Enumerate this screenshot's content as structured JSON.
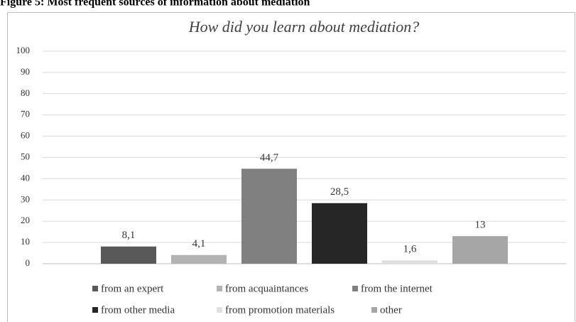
{
  "caption": "Figure 5: Most frequent sources of information about mediation",
  "chart_data": {
    "type": "bar",
    "title": "How did you learn about mediation?",
    "series": [
      {
        "name": "from an expert",
        "color": "#595959",
        "values": [
          8.1
        ],
        "value_labels": [
          "8,1"
        ]
      },
      {
        "name": "from acquaintances",
        "color": "#b3b3b3",
        "values": [
          4.1
        ],
        "value_labels": [
          "4,1"
        ]
      },
      {
        "name": "from the internet",
        "color": "#808080",
        "values": [
          44.7
        ],
        "value_labels": [
          "44,7"
        ]
      },
      {
        "name": "from other media",
        "color": "#262626",
        "values": [
          28.5
        ],
        "value_labels": [
          "28,5"
        ]
      },
      {
        "name": "from promotion materials",
        "color": "#e0e0e0",
        "values": [
          1.6
        ],
        "value_labels": [
          "1,6"
        ]
      },
      {
        "name": "other",
        "color": "#a6a6a6",
        "values": [
          13
        ],
        "value_labels": [
          "13"
        ]
      }
    ],
    "ylim": [
      0,
      100
    ],
    "yticks": [
      0,
      10,
      20,
      30,
      40,
      50,
      60,
      70,
      80,
      90,
      100
    ],
    "grid": true,
    "legend": "bottom"
  }
}
